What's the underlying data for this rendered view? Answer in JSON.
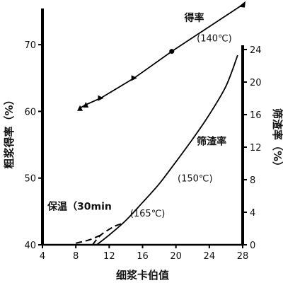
{
  "chart_data": {
    "type": "line",
    "xlabel": "细浆卡伯值",
    "ylabel_left": "粗浆得率（%）",
    "ylabel_right": "筛渣率（%）",
    "xlim": [
      4,
      28
    ],
    "ylim_left": [
      40,
      75
    ],
    "ylim_right": [
      0,
      24
    ],
    "x_ticks": [
      4,
      8,
      12,
      16,
      20,
      24,
      28
    ],
    "y_left_ticks": [
      40,
      50,
      60,
      70
    ],
    "y_right_ticks": [
      0,
      4,
      8,
      12,
      16,
      20,
      24
    ],
    "series": [
      {
        "name": "得率",
        "axis": "left",
        "style": "solid",
        "points": [
          [
            8.5,
            60.5
          ],
          [
            9.2,
            61.0
          ],
          [
            11.0,
            62.0
          ],
          [
            15.0,
            65.0
          ],
          [
            19.5,
            69.0
          ],
          [
            28.0,
            76.0
          ]
        ]
      },
      {
        "name": "筛渣率",
        "axis": "right",
        "style": "solid",
        "points": [
          [
            10.5,
            0
          ],
          [
            12.0,
            1.2
          ],
          [
            14.0,
            3.0
          ],
          [
            16.0,
            5.2
          ],
          [
            18.0,
            7.5
          ],
          [
            20.0,
            10.2
          ],
          [
            22.0,
            13.0
          ],
          [
            24.0,
            16.0
          ],
          [
            26.0,
            19.5
          ],
          [
            27.4,
            23.3
          ]
        ]
      },
      {
        "name": "保温",
        "axis": "right",
        "style": "dashed",
        "points": [
          [
            10.0,
            0
          ],
          [
            11.0,
            1.2
          ],
          [
            12.5,
            2.2
          ],
          [
            13.5,
            2.6
          ]
        ]
      },
      {
        "name": "",
        "axis": "right",
        "style": "dashed",
        "points": [
          [
            8.0,
            0.2
          ],
          [
            9.6,
            0.6
          ],
          [
            11.0,
            1.2
          ]
        ]
      }
    ],
    "annotations": [
      {
        "text": "得率",
        "x": 21.0,
        "y_left": 73.5
      },
      {
        "text": "(140℃)",
        "x": 22.5,
        "y_left": 70.5
      },
      {
        "text": "筛渣率",
        "x": 22.5,
        "y_right": 12.3
      },
      {
        "text": "(150℃)",
        "x": 20.2,
        "y_right": 7.8
      },
      {
        "text": "(165℃)",
        "x": 14.5,
        "y_right": 3.5
      },
      {
        "text": "保温（30min",
        "x": 4.6,
        "y_right": 4.3
      }
    ]
  }
}
